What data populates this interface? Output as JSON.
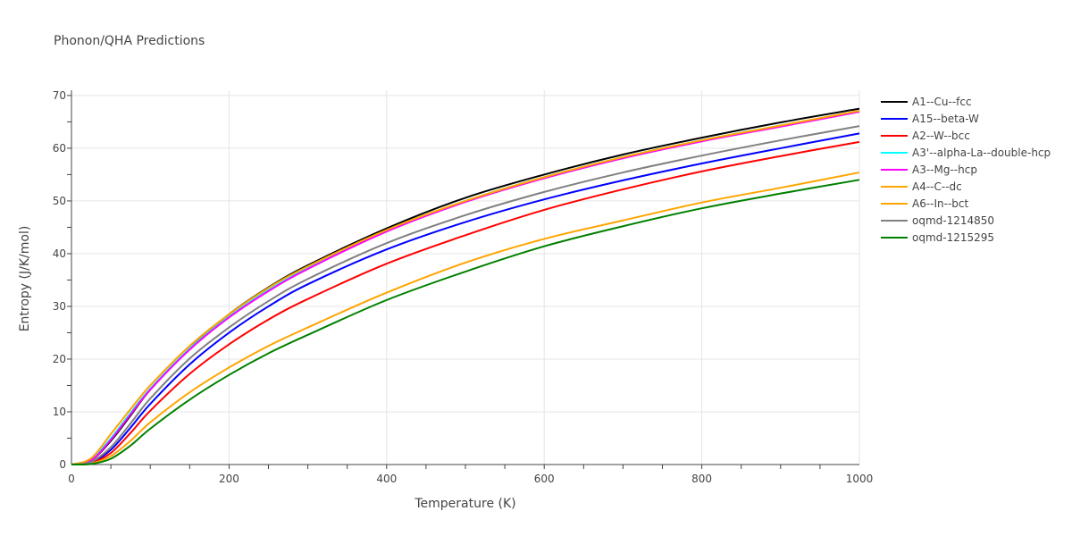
{
  "chart_data": {
    "type": "line",
    "title": "Phonon/QHA Predictions",
    "xlabel": "Temperature (K)",
    "ylabel": "Entropy (J/K/mol)",
    "xlim": [
      0,
      1000
    ],
    "ylim": [
      0,
      71
    ],
    "xticks": [
      0,
      200,
      400,
      600,
      800,
      1000
    ],
    "yticks": [
      0,
      10,
      20,
      30,
      40,
      50,
      60,
      70
    ],
    "grid": true,
    "legend_position": "top-right",
    "x": [
      0,
      25,
      50,
      75,
      100,
      150,
      200,
      250,
      300,
      400,
      500,
      600,
      700,
      800,
      900,
      1000
    ],
    "series": [
      {
        "name": "A1--Cu--fcc",
        "color": "#000000",
        "values": [
          0,
          0.8,
          4.5,
          9.3,
          14.2,
          22.0,
          28.5,
          33.6,
          37.8,
          44.8,
          50.6,
          55.0,
          58.8,
          62.0,
          64.9,
          67.5
        ]
      },
      {
        "name": "A15--beta-W",
        "color": "#0000ff",
        "values": [
          0,
          0.4,
          2.8,
          7.0,
          11.5,
          19.0,
          25.0,
          30.0,
          34.2,
          40.8,
          46.0,
          50.3,
          53.9,
          57.1,
          60.0,
          62.8
        ]
      },
      {
        "name": "A2--W--bcc",
        "color": "#ff0000",
        "values": [
          0,
          0.3,
          2.2,
          6.0,
          10.2,
          17.2,
          22.8,
          27.5,
          31.4,
          38.1,
          43.5,
          48.3,
          52.2,
          55.6,
          58.5,
          61.2
        ]
      },
      {
        "name": "A3'--alpha-La--double-hcp",
        "color": "#00ffff",
        "values": [
          0,
          1.0,
          5.0,
          9.8,
          14.4,
          22.0,
          28.1,
          33.1,
          37.3,
          44.4,
          50.0,
          54.5,
          58.3,
          61.5,
          64.3,
          67.0
        ]
      },
      {
        "name": "A3--Mg--hcp",
        "color": "#ff00ff",
        "values": [
          0,
          0.8,
          4.7,
          9.5,
          14.2,
          21.8,
          27.9,
          32.9,
          37.1,
          44.2,
          49.8,
          54.3,
          58.1,
          61.3,
          64.1,
          66.9
        ]
      },
      {
        "name": "A4--C--dc",
        "color": "#ffa500",
        "values": [
          0,
          1.2,
          5.8,
          10.5,
          15.0,
          22.5,
          28.5,
          33.5,
          37.6,
          44.5,
          50.0,
          54.5,
          58.3,
          61.5,
          64.3,
          67.1
        ]
      },
      {
        "name": "A6--In--bct",
        "color": "#ffa500",
        "values": [
          0,
          0.2,
          1.6,
          4.5,
          8.0,
          13.7,
          18.4,
          22.5,
          26.0,
          32.6,
          38.3,
          42.8,
          46.3,
          49.7,
          52.5,
          55.4
        ]
      },
      {
        "name": "oqmd-1214850",
        "color": "#808080",
        "values": [
          0,
          0.5,
          3.3,
          7.8,
          12.5,
          20.1,
          26.0,
          31.0,
          35.2,
          42.0,
          47.3,
          51.7,
          55.4,
          58.6,
          61.5,
          64.2
        ]
      },
      {
        "name": "oqmd-1215295",
        "color": "#008000",
        "values": [
          0,
          0.1,
          1.1,
          3.6,
          6.8,
          12.3,
          17.0,
          21.1,
          24.6,
          31.2,
          36.6,
          41.4,
          45.2,
          48.6,
          51.4,
          54.0
        ]
      }
    ]
  }
}
